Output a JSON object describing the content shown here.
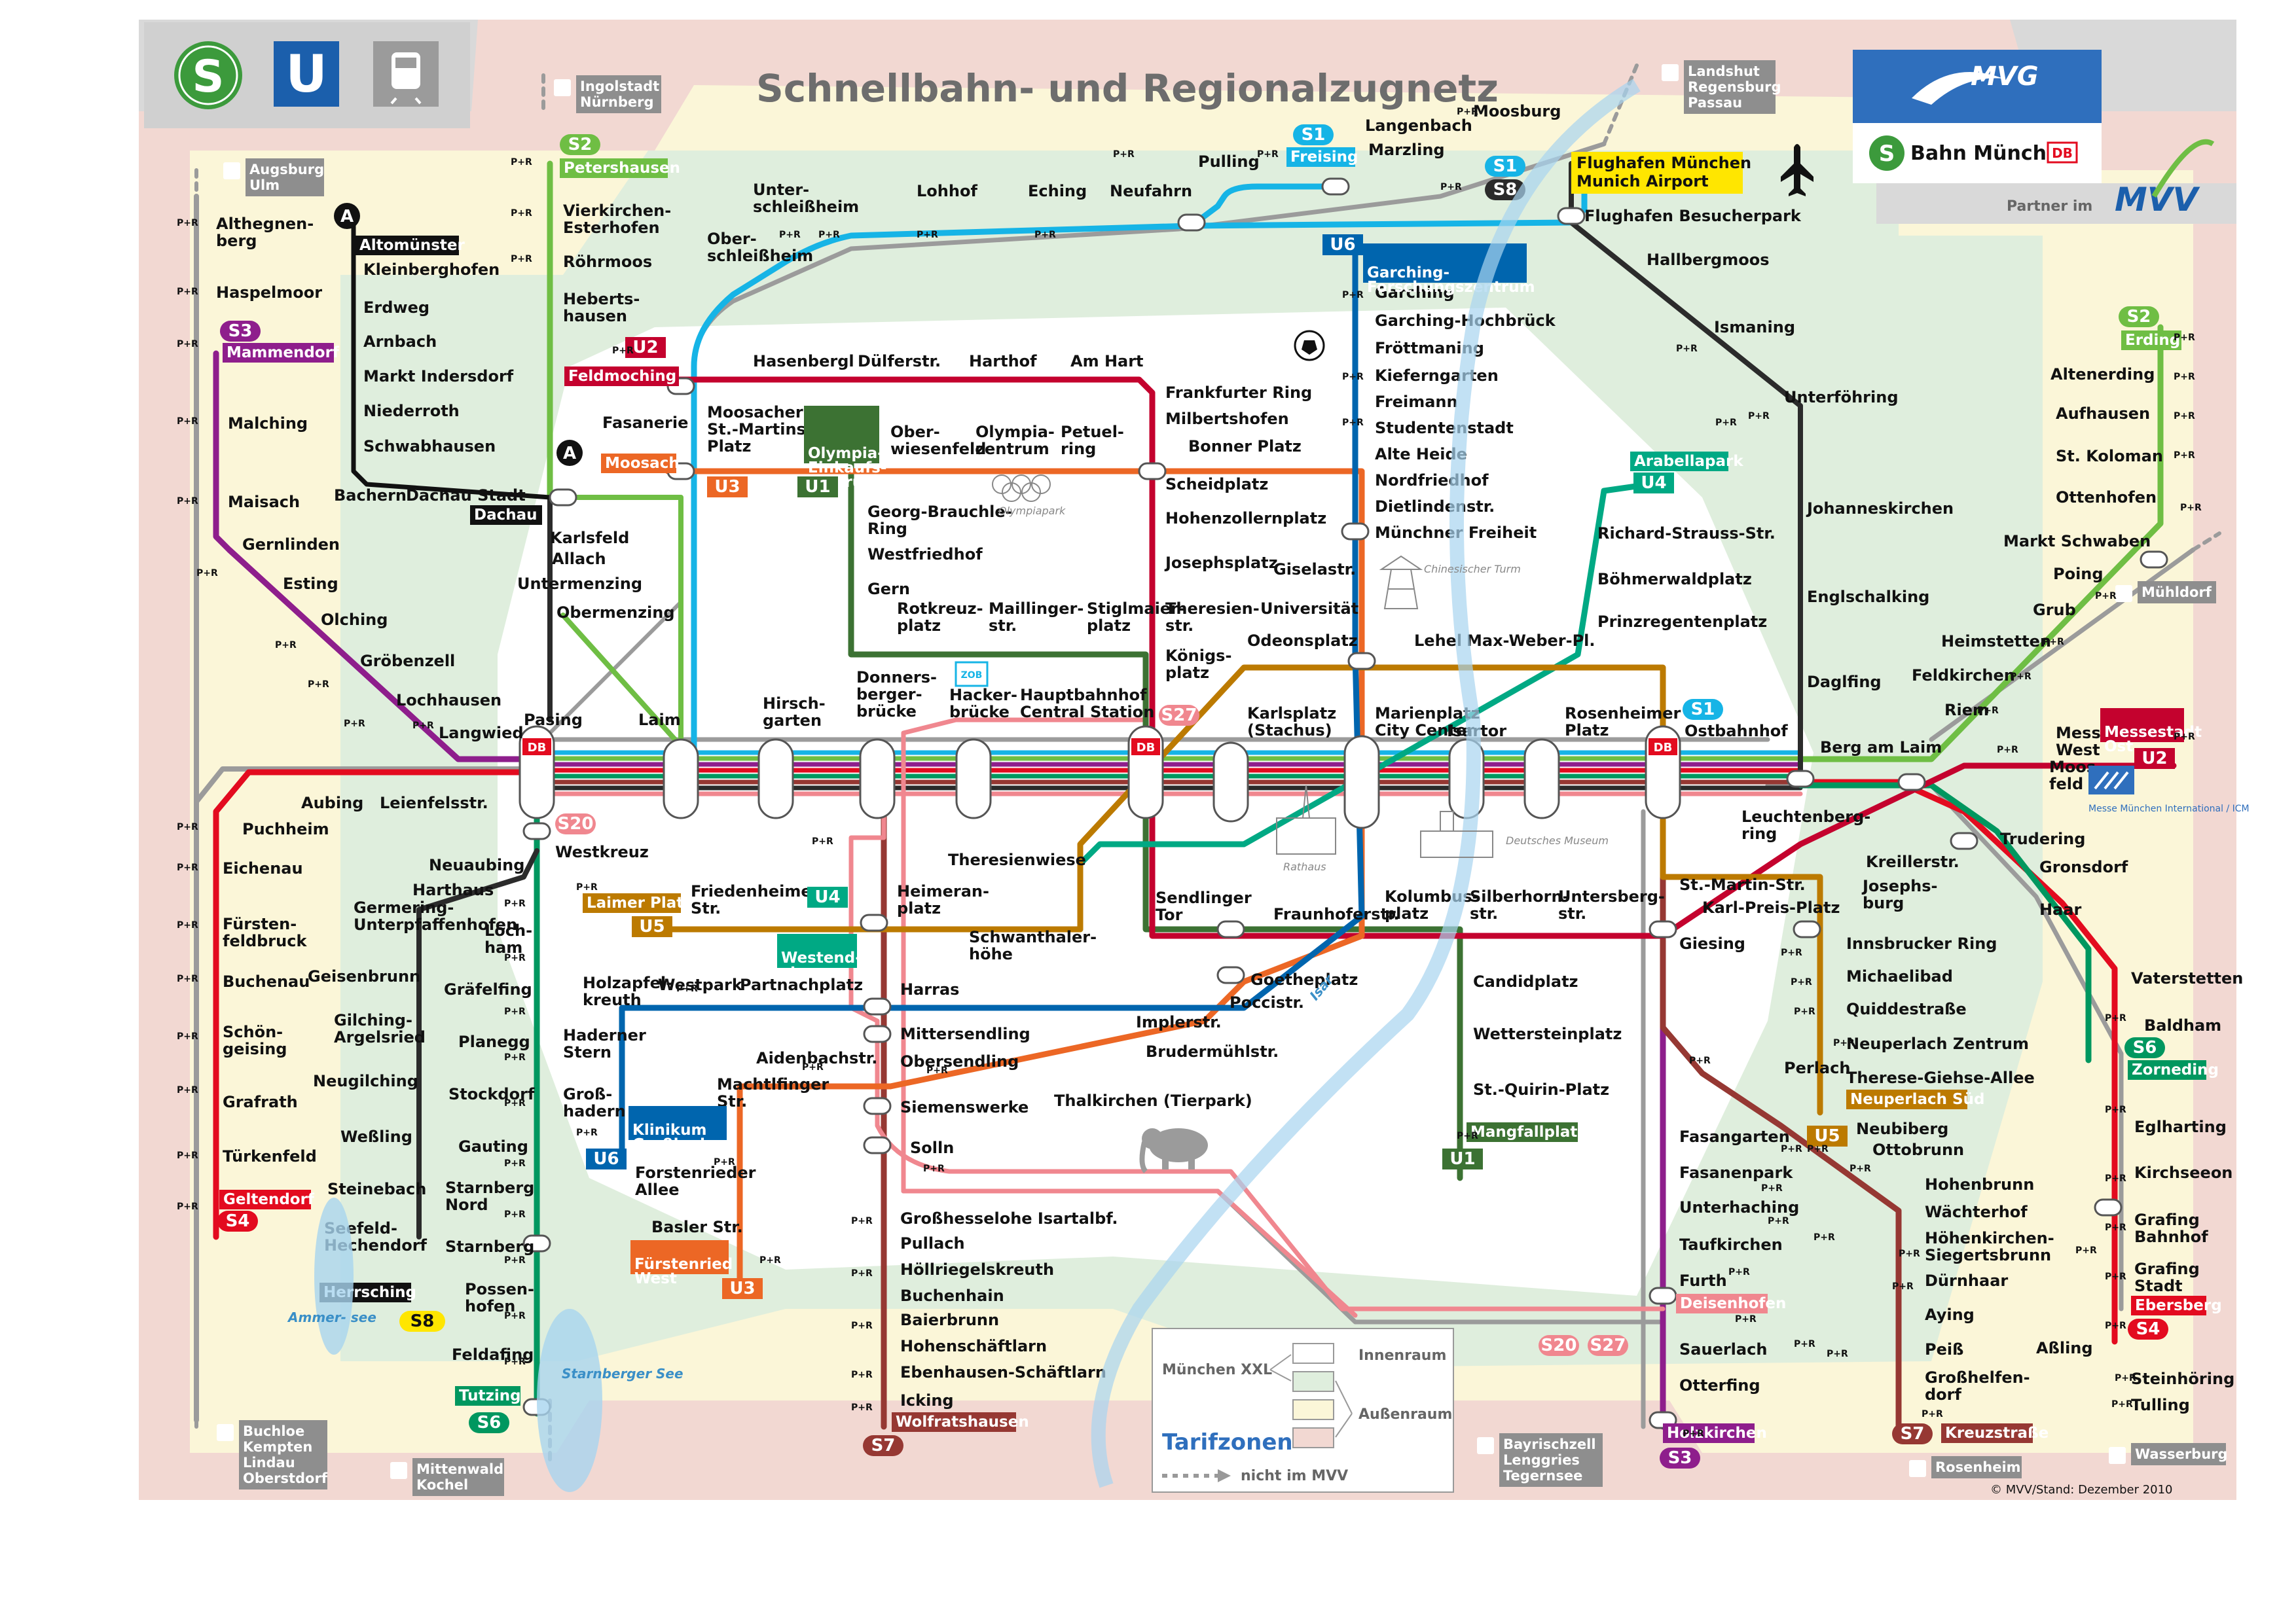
{
  "title": "Schnellbahn- und Regionalzugnetz",
  "header_icons": {
    "sbahn": "S",
    "ubahn": "U",
    "regional": "regional-train-icon"
  },
  "logos": {
    "mvg": "MVG",
    "sbahn_muenchen": "Bahn München",
    "db": "DB",
    "partner": "Partner im",
    "mvv": "MVV"
  },
  "colors": {
    "S1": "#16b4e6",
    "S2": "#6fbe44",
    "S3": "#8e1e8c",
    "S4": "#e30b1f",
    "S6": "#00975f",
    "S7": "#963833",
    "S8": "#2b2b2b",
    "S20": "#f0878f",
    "S27": "#f0878f",
    "SA": "#111111",
    "U1": "#3c7233",
    "U2": "#c4022e",
    "U3": "#ec6725",
    "U4": "#00a984",
    "U5": "#bc7a00",
    "U6": "#0065ae",
    "regional": "#9b9b9b"
  },
  "line_names": [
    "S1",
    "S2",
    "S3",
    "S4",
    "S6",
    "S7",
    "S8",
    "S20",
    "S27",
    "U1",
    "U2",
    "U3",
    "U4",
    "U5",
    "U6",
    "A"
  ],
  "zone_legend": {
    "title": "Tarifzonen",
    "muenchen_xxl": "München XXL",
    "innenraum": "Innenraum",
    "aussenraum": "Außenraum",
    "nicht_im_mvv": "nicht im MVV"
  },
  "footer": "© MVV/Stand: Dezember 2010",
  "pr_label": "P+R",
  "destinations": {
    "augsburg": "Augsburg\nUlm",
    "ingolstadt": "Ingolstadt\nNürnberg",
    "landshut": "Landshut\nRegensburg\nPassau",
    "muehldorf": "Mühldorf",
    "wasserburg": "Wasserburg",
    "rosenheim": "Rosenheim",
    "bayrischzell": "Bayrischzell\nLenggries\nTegernsee",
    "mittenwald": "Mittenwald\nKochel",
    "buchloe": "Buchloe\nKempten\nLindau\nOberstdorf"
  },
  "terminals": {
    "petershausen": "Petershausen",
    "mammendorf": "Mammendorf",
    "altomuenster": "Altomünster",
    "dachau": "Dachau",
    "feldmoching": "Feldmoching",
    "moosach": "Moosach",
    "olympia_einkaufszentrum": "Olympia-\nEinkaufs-\nzentrum",
    "freising": "Freising",
    "flughafen": "Flughafen München\nMunich Airport",
    "garching_fz": "Garching-\nForschungszentrum",
    "arabellapark": "Arabellapark",
    "erding": "Erding",
    "messestadt_ost": "Messestadt\nOst",
    "zorneding": "Zorneding",
    "ebersberg": "Ebersberg",
    "kreuzstrasse": "Kreuzstraße",
    "holzkirchen": "Holzkirchen",
    "deisenhofen": "Deisenhofen",
    "neuperlach_sued": "Neuperlach Süd",
    "mangfallplatz": "Mangfallplatz",
    "wolfratshausen": "Wolfratshausen",
    "fuerstenried_west": "Fürstenried\nWest",
    "klinikum_grosshadern": "Klinikum\nGroßhadern",
    "westendstr": "Westend-\nstr.",
    "laimer_platz": "Laimer Platz",
    "tutzing": "Tutzing",
    "herrsching": "Herrsching",
    "geltendorf": "Geltendorf"
  },
  "stations": {
    "althegnenberg": "Althegnen-\nberg",
    "haspelmoor": "Haspelmoor",
    "malching": "Malching",
    "maisach": "Maisach",
    "gernlinden": "Gernlinden",
    "esting": "Esting",
    "olching": "Olching",
    "groebenzell": "Gröbenzell",
    "lochhausen": "Lochhausen",
    "langwied": "Langwied",
    "pasing": "Pasing",
    "laim": "Laim",
    "hirschgarten": "Hirsch-\ngarten",
    "donnersbergerbruecke": "Donners-\nberger-\nbrücke",
    "hackerbruecke": "Hacker-\nbrücke",
    "hauptbahnhof": "Hauptbahnhof\nCentral Station",
    "karlsplatz": "Karlsplatz\n(Stachus)",
    "marienplatz": "Marienplatz\nCity Center",
    "isartor": "Isartor",
    "rosenheimer_platz": "Rosenheimer\nPlatz",
    "ostbahnhof": "Ostbahnhof",
    "leuchtenbergring": "Leuchtenberg-\nring",
    "berg_am_laim": "Berg am Laim",
    "riem": "Riem",
    "feldkirchen": "Feldkirchen",
    "heimstetten": "Heimstetten",
    "grub": "Grub",
    "poing": "Poing",
    "markt_schwaben": "Markt Schwaben",
    "ottenhofen": "Ottenhofen",
    "st_koloman": "St. Koloman",
    "aufhausen": "Aufhausen",
    "altenerding": "Altenerding",
    "vierkirchen": "Vierkirchen-\nEsterhofen",
    "roehrmoos": "Röhrmoos",
    "hebertshausen": "Heberts-\nhausen",
    "kleinberghofen": "Kleinberghofen",
    "erdweg": "Erdweg",
    "arnbach": "Arnbach",
    "markt_indersdorf": "Markt Indersdorf",
    "niederroth": "Niederroth",
    "schwabhausen": "Schwabhausen",
    "bachern": "Bachern",
    "dachau_stadt": "Dachau Stadt",
    "karlsfeld": "Karlsfeld",
    "allach": "Allach",
    "untermenzing": "Untermenzing",
    "obermenzing": "Obermenzing",
    "fasanerie": "Fasanerie",
    "unterschleissheim": "Unter-\nschleißheim",
    "oberschleissheim": "Ober-\nschleißheim",
    "lohhof": "Lohhof",
    "eching": "Eching",
    "neufahrn": "Neufahrn",
    "pulling": "Pulling",
    "langenbach": "Langenbach",
    "marzling": "Marzling",
    "moosburg": "Moosburg",
    "flughafen_besucherpark": "Flughafen Besucherpark",
    "hallbergmoos": "Hallbergmoos",
    "ismaning": "Ismaning",
    "unterfoehring": "Unterföhring",
    "johanneskirchen": "Johanneskirchen",
    "englschalking": "Englschalking",
    "daglfing": "Daglfing",
    "hasenbergl": "Hasenbergl",
    "duelferstr": "Dülferstr.",
    "harthof": "Harthof",
    "am_hart": "Am Hart",
    "frankfurter_ring": "Frankfurter Ring",
    "milbertshofen": "Milbertshofen",
    "bonner_platz": "Bonner Platz",
    "scheidplatz": "Scheidplatz",
    "hohenzollernplatz": "Hohenzollernplatz",
    "josephsplatz": "Josephsplatz",
    "theresienstr": "Theresien-\nstr.",
    "koenigsplatz": "Königs-\nplatz",
    "moosacher_st_martins": "Moosacher\nSt.-Martins-\nPlatz",
    "oberwiesenfeld": "Ober-\nwiesenfeld",
    "olympiazentrum": "Olympia-\nzentrum",
    "petuelring": "Petuel-\nring",
    "georg_brauchle_ring": "Georg-Brauchle-\nRing",
    "westfriedhof": "Westfriedhof",
    "gern": "Gern",
    "rotkreuzplatz": "Rotkreuz-\nplatz",
    "maillinger": "Maillinger-\nstr.",
    "stiglmaierplatz": "Stiglmaier-\nplatz",
    "garching": "Garching",
    "garching_hochbrueck": "Garching-Hochbrück",
    "froettmaning": "Fröttmaning",
    "kieferngarten": "Kieferngarten",
    "freimann": "Freimann",
    "studentenstadt": "Studentenstadt",
    "alte_heide": "Alte Heide",
    "nordfriedhof": "Nordfriedhof",
    "dietlindenstr": "Dietlindenstr.",
    "muenchner_freiheit": "Münchner Freiheit",
    "giselastr": "Giselastr.",
    "universitaet": "Universität",
    "odeonsplatz": "Odeonsplatz",
    "lehel": "Lehel",
    "max_weber_platz": "Max-Weber-Pl.",
    "richard_strauss": "Richard-Strauss-Str.",
    "boehmerwaldplatz": "Böhmerwaldplatz",
    "prinzregentenplatz": "Prinzregentenplatz",
    "aubing": "Aubing",
    "leienfelsstr": "Leienfelsstr.",
    "puchheim": "Puchheim",
    "eichenau": "Eichenau",
    "fuerstenfeldbruck": "Fürsten-\nfeldbruck",
    "buchenau": "Buchenau",
    "schoengeising": "Schön-\ngeising",
    "grafrath": "Grafrath",
    "tuerkenfeld": "Türkenfeld",
    "neuaubing": "Neuaubing",
    "harthaus": "Harthaus",
    "germering": "Germering-\nUnterpfaffenhofen",
    "geisenbrunn": "Geisenbrunn",
    "gilching": "Gilching-\nArgelsried",
    "neugilching": "Neugilching",
    "wessling": "Weßling",
    "steinebach": "Steinebach",
    "seefeld": "Seefeld-\nHechendorf",
    "westkreuz": "Westkreuz",
    "lochham": "Loch-\nham",
    "graefelfing": "Gräfelfing",
    "planegg": "Planegg",
    "stockdorf": "Stockdorf",
    "gauting": "Gauting",
    "starnberg_nord": "Starnberg\nNord",
    "starnberg": "Starnberg",
    "possenhofen": "Possen-\nhofen",
    "feldafing": "Feldafing",
    "friedenheimer_str": "Friedenheimer\nStr.",
    "heimeranplatz": "Heimeran-\nplatz",
    "theresienwiese": "Theresienwiese",
    "schwanthalerhoehe": "Schwanthaler-\nhöhe",
    "harras": "Harras",
    "westpark": "Westpark",
    "partnachplatz": "Partnachplatz",
    "holzapfelkreuth": "Holzapfel-\nkreuth",
    "haderner_stern": "Haderner\nStern",
    "grosshadern": "Groß-\nhadern",
    "mittersendling": "Mittersendling",
    "obersendling": "Obersendling",
    "aidenbachstr": "Aidenbachstr.",
    "machtlfinger_str": "Machtlfinger\nStr.",
    "forstenrieder_allee": "Forstenrieder\nAllee",
    "basler_str": "Basler Str.",
    "siemenswerke": "Siemenswerke",
    "solln": "Solln",
    "thalkirchen": "Thalkirchen (Tierpark)",
    "implerstr": "Implerstr.",
    "brudermuehlstr": "Brudermühlstr.",
    "poccistr": "Poccistr.",
    "goetheplatz": "Goetheplatz",
    "sendlinger_tor": "Sendlinger\nTor",
    "fraunhoferstr": "Fraunhoferstr.",
    "kolumbusplatz": "Kolumbus-\nplatz",
    "silberhornstr": "Silberhorn-\nstr.",
    "untersbergstr": "Untersberg-\nstr.",
    "candidplatz": "Candidplatz",
    "wettersteinplatz": "Wettersteinplatz",
    "st_quirin_platz": "St.-Quirin-Platz",
    "st_martin_str": "St.-Martin-Str.",
    "giesing": "Giesing",
    "karl_preis_platz": "Karl-Preis-Platz",
    "innsbrucker_ring": "Innsbrucker Ring",
    "michaelibad": "Michaelibad",
    "quiddestrasse": "Quiddestraße",
    "neuperlach_zentrum": "Neuperlach Zentrum",
    "therese_giehse_allee": "Therese-Giehse-Allee",
    "kreillerstr": "Kreillerstr.",
    "josephsburg": "Josephs-\nburg",
    "trudering": "Trudering",
    "gronsdorf": "Gronsdorf",
    "haar": "Haar",
    "vaterstetten": "Vaterstetten",
    "baldham": "Baldham",
    "messestadt_west": "Messestadt\nWest",
    "moosfeld": "Moos-\nfeld",
    "perlach": "Perlach",
    "neubiberg": "Neubiberg",
    "ottobrunn": "Ottobrunn",
    "hohenbrunn": "Hohenbrunn",
    "waechterhof": "Wächterhof",
    "hoehenkirchen": "Höhenkirchen-\nSiegertsbrunn",
    "duernhaar": "Dürnhaar",
    "aying": "Aying",
    "peiss": "Peiß",
    "grossheldendorf": "Großhelfen-\ndorf",
    "assling": "Aßling",
    "eglharting": "Eglharting",
    "kirchseeon": "Kirchseeon",
    "grafing_bahnhof": "Grafing\nBahnhof",
    "grafing_stadt": "Grafing\nStadt",
    "steinhoering": "Steinhöring",
    "tulling": "Tulling",
    "fasangarten": "Fasangarten",
    "fasanenpark": "Fasanenpark",
    "unterhaching": "Unterhaching",
    "taufkirchen": "Taufkirchen",
    "furth": "Furth",
    "sauerlach": "Sauerlach",
    "otterfing": "Otterfing",
    "grosshesselohe": "Großhesselohe Isartalbf.",
    "pullach": "Pullach",
    "hoellriegelskreuth": "Höllriegelskreuth",
    "buchenhain": "Buchenhain",
    "baierbrunn": "Baierbrunn",
    "hohenschaeftlarn": "Hohenschäftlarn",
    "ebenhausen": "Ebenhausen-Schäftlarn",
    "icking": "Icking",
    "pasing_db": "DB",
    "hbf_db": "DB",
    "ost_db": "DB"
  },
  "landmarks": {
    "olympiapark": "Olympiapark",
    "chinesischer_turm": "Chinesischer\nTurm",
    "rathaus": "Rathaus",
    "deutsches_museum": "Deutsches\nMuseum",
    "isar": "Isar",
    "ammersee": "Ammer-\nsee",
    "starnberger_see": "Starnberger\nSee",
    "messe": "Messe München\nInternational / ICM",
    "zob": "ZOB"
  }
}
